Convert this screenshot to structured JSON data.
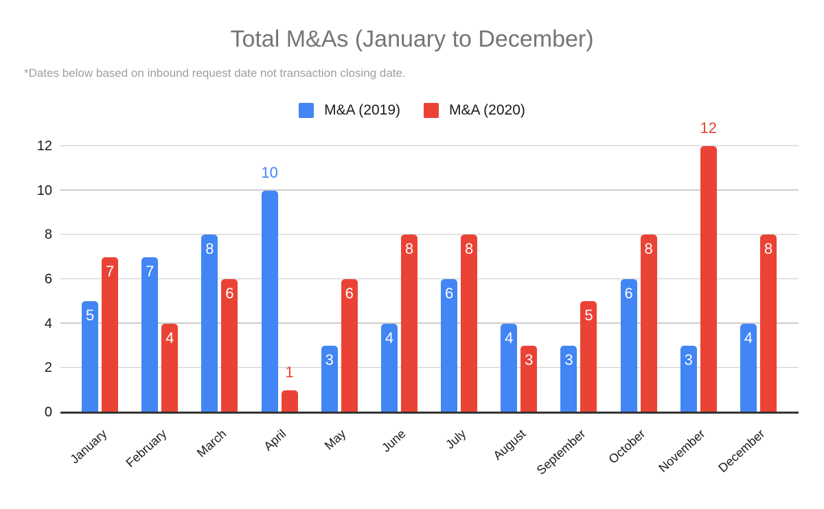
{
  "chart_data": {
    "type": "bar",
    "title": "Total M&As (January to December)",
    "subtitle": "*Dates below based on inbound request date not transaction closing date.",
    "xlabel": "",
    "ylabel": "",
    "categories": [
      "January",
      "February",
      "March",
      "April",
      "May",
      "June",
      "July",
      "August",
      "September",
      "October",
      "November",
      "December"
    ],
    "series": [
      {
        "name": "M&A (2019)",
        "color": "#4285f4",
        "values": [
          5,
          7,
          8,
          10,
          3,
          4,
          6,
          4,
          3,
          6,
          3,
          4
        ],
        "label_outside_indices": [
          3
        ]
      },
      {
        "name": "M&A (2020)",
        "color": "#ea4335",
        "values": [
          7,
          4,
          6,
          1,
          6,
          8,
          8,
          3,
          5,
          8,
          12,
          8
        ],
        "label_outside_indices": [
          3,
          10
        ]
      }
    ],
    "ylim": [
      0,
      12
    ],
    "yticks": [
      0,
      2,
      4,
      6,
      8,
      10,
      12
    ],
    "grid": true,
    "legend_position": "top",
    "bar_label_color_inside": "#ffffff",
    "colors": {
      "title": "#757575",
      "subtitle": "#9e9e9e",
      "tick_label": "#1a1a1a",
      "gridline": "#cccccc",
      "axis_line": "#333333",
      "background": "#ffffff"
    }
  }
}
